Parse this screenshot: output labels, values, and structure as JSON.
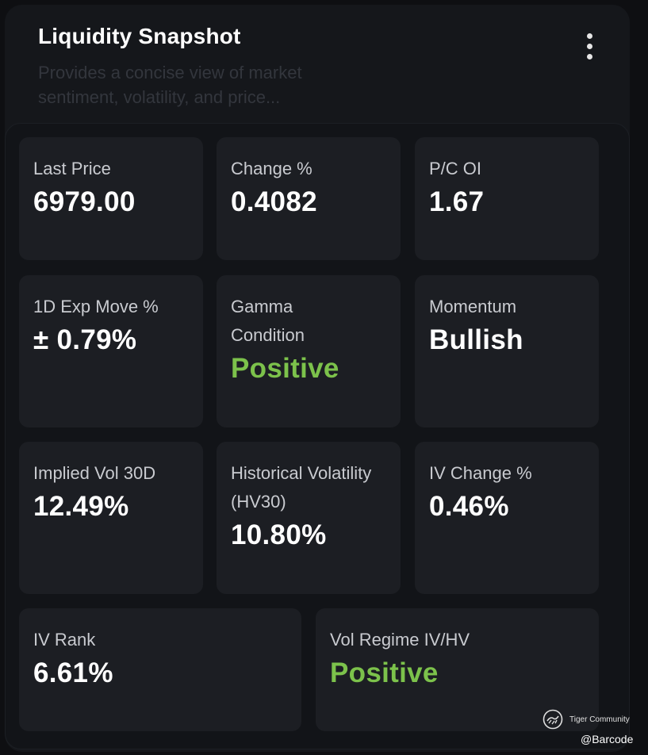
{
  "header": {
    "title": "Liquidity Snapshot",
    "subtitle": "Provides a concise view of market sentiment, volatility, and price..."
  },
  "menu_icon": "more-vertical-icon",
  "metrics": [
    {
      "label": "Last Price",
      "value": "6979.00"
    },
    {
      "label": "Change %",
      "value": "0.4082"
    },
    {
      "label": "P/C OI",
      "value": "1.67"
    },
    {
      "label": "1D Exp Move %",
      "value": "± 0.79%"
    },
    {
      "label": "Gamma Condition",
      "value": "Positive",
      "value_color": "#7cc24b"
    },
    {
      "label": "Momentum",
      "value": "Bullish"
    },
    {
      "label": "Implied Vol 30D",
      "value": "12.49%"
    },
    {
      "label": "Historical Volatility (HV30)",
      "value": "10.80%"
    },
    {
      "label": "IV Change %",
      "value": "0.46%"
    },
    {
      "label": "IV Rank",
      "value": "6.61%"
    },
    {
      "label": "Vol Regime IV/HV",
      "value": "Positive",
      "value_color": "#7cc24b"
    }
  ],
  "watermark": {
    "name": "Tiger Community",
    "handle": "@Barcode"
  },
  "colors": {
    "background": "#0e0f12",
    "card": "#1c1e23",
    "positive": "#7cc24b"
  }
}
